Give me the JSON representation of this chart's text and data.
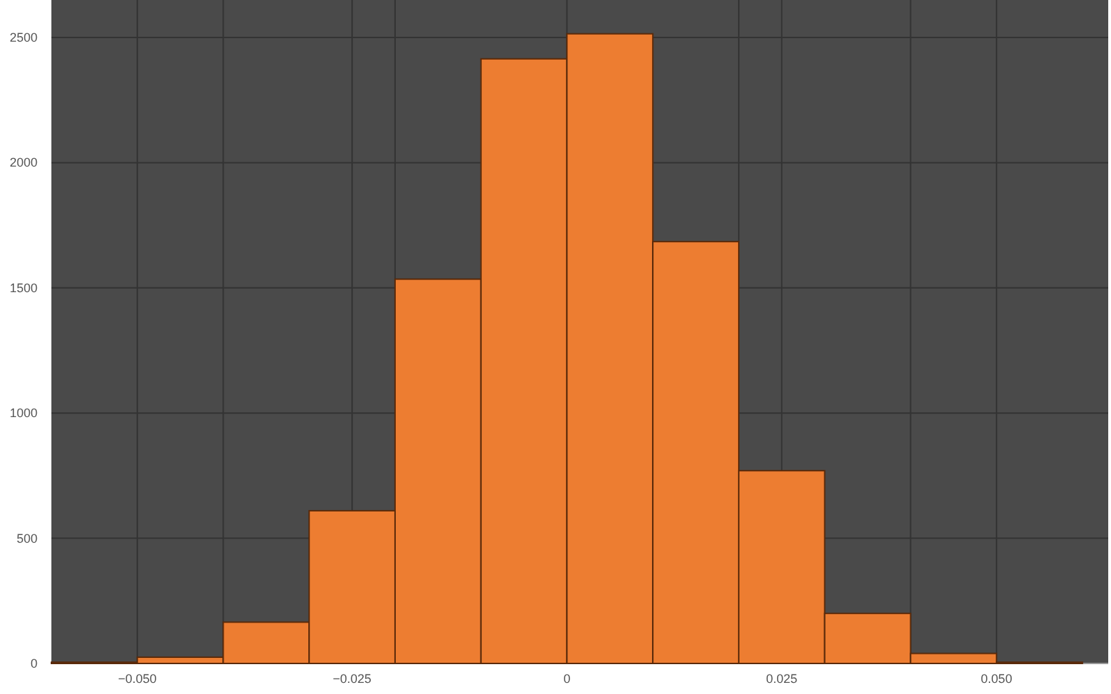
{
  "chart_data": {
    "type": "histogram",
    "bins": [
      -0.06,
      -0.05,
      -0.04,
      -0.03,
      -0.02,
      -0.01,
      0,
      0.01,
      0.02,
      0.03,
      0.04,
      0.05,
      0.06
    ],
    "values": [
      5,
      25,
      165,
      610,
      1535,
      2415,
      2515,
      1685,
      770,
      200,
      40,
      5
    ],
    "color": "#ed7d31",
    "xlim": [
      -0.06,
      0.063
    ],
    "ylim": [
      0,
      2650
    ],
    "xticks": [
      {
        "value": -0.05,
        "label": "−0.050"
      },
      {
        "value": -0.04,
        "label": null
      },
      {
        "value": -0.025,
        "label": "−0.025"
      },
      {
        "value": -0.02,
        "label": null
      },
      {
        "value": 0,
        "label": "0"
      },
      {
        "value": 0.02,
        "label": null
      },
      {
        "value": 0.025,
        "label": "0.025"
      },
      {
        "value": 0.04,
        "label": null
      },
      {
        "value": 0.05,
        "label": "0.050"
      }
    ],
    "yticks": [
      0,
      500,
      1000,
      1500,
      2000,
      2500
    ],
    "grid": true
  }
}
